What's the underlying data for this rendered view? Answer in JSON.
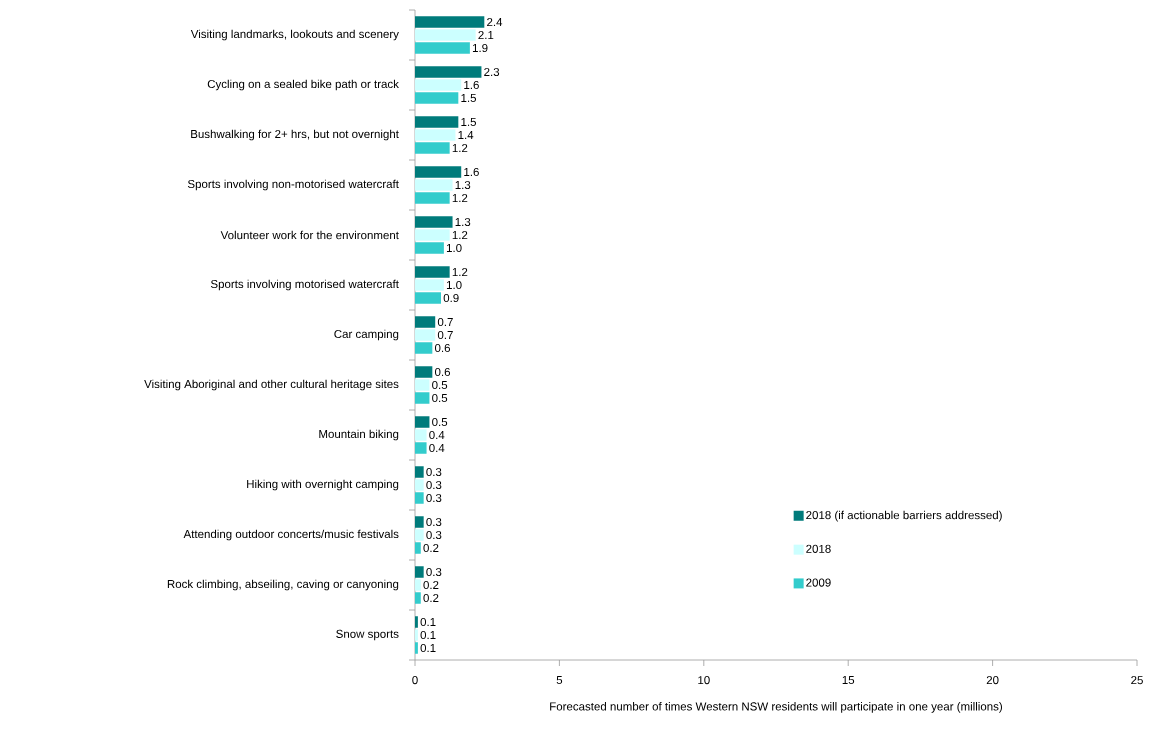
{
  "chart_data": {
    "type": "bar",
    "orientation": "horizontal",
    "xlabel": "Forecasted number of times Western NSW residents will participate in one year (millions)",
    "categories": [
      "Visiting landmarks, lookouts and scenery",
      "Cycling on a sealed bike path or track",
      "Bushwalking for 2+ hrs, but not overnight",
      "Sports involving non-motorised watercraft",
      "Volunteer work for the environment",
      "Sports involving motorised watercraft",
      "Car camping",
      "Visiting Aboriginal and other cultural heritage sites",
      "Mountain biking",
      "Hiking with overnight camping",
      "Attending outdoor concerts/music festivals",
      "Rock climbing, abseiling, caving or canyoning",
      "Snow sports"
    ],
    "series": [
      {
        "name": "2018 (if actionable barriers addressed)",
        "color": "#007b7b",
        "values": [
          2.4,
          2.3,
          1.5,
          1.6,
          1.3,
          1.2,
          0.7,
          0.6,
          0.5,
          0.3,
          0.3,
          0.3,
          0.1
        ],
        "value_labels": [
          "2.4",
          "2.3",
          "1.5",
          "1.6",
          "1.3",
          "1.2",
          "0.7",
          "0.6",
          "0.5",
          "0.3",
          "0.3",
          "0.3",
          "0.1"
        ]
      },
      {
        "name": "2018",
        "color": "#ccffff",
        "values": [
          2.1,
          1.6,
          1.4,
          1.3,
          1.2,
          1.0,
          0.7,
          0.5,
          0.4,
          0.3,
          0.3,
          0.2,
          0.1
        ],
        "value_labels": [
          "2.1",
          "1.6",
          "1.4",
          "1.3",
          "1.2",
          "1.0",
          "0.7",
          "0.5",
          "0.4",
          "0.3",
          "0.3",
          "0.2",
          "0.1"
        ]
      },
      {
        "name": "2009",
        "color": "#33cccc",
        "values": [
          1.9,
          1.5,
          1.2,
          1.2,
          1.0,
          0.9,
          0.6,
          0.5,
          0.4,
          0.3,
          0.2,
          0.2,
          0.1
        ],
        "value_labels": [
          "1.9",
          "1.5",
          "1.2",
          "1.2",
          "1.0",
          "0.9",
          "0.6",
          "0.5",
          "0.4",
          "0.3",
          "0.2",
          "0.2",
          "0.1"
        ]
      }
    ],
    "xlim": [
      0,
      25
    ],
    "xticks": [
      0,
      5,
      10,
      15,
      20,
      25
    ],
    "legend": "bottom right",
    "grid": false
  }
}
